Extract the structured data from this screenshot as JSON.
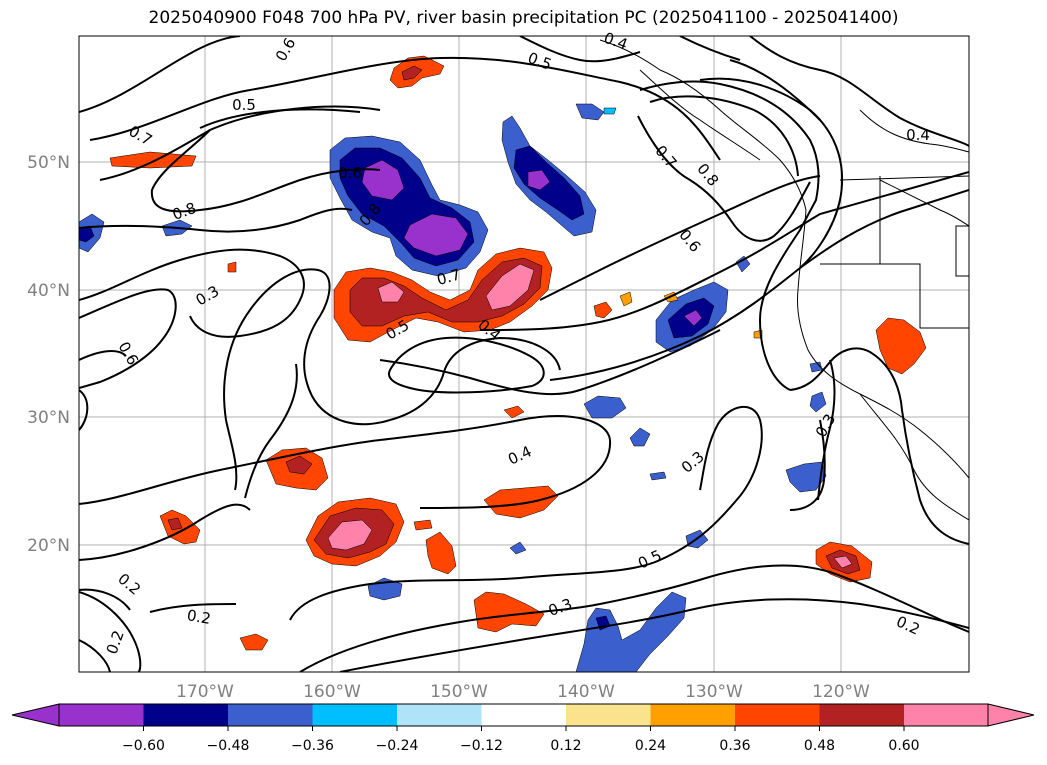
{
  "title": "2025040900 F048 700 hPa PV, river basin precipitation PC (2025041100 - 2025041400)",
  "axes": {
    "lat_labels": [
      "50°N",
      "40°N",
      "30°N",
      "20°N"
    ],
    "lon_labels": [
      "170°W",
      "160°W",
      "150°W",
      "140°W",
      "130°W",
      "120°W"
    ],
    "label_color": "#808080"
  },
  "contour_labels": [
    "0.7",
    "0.6",
    "0.5",
    "0.5",
    "0.4",
    "0.8",
    "0.7",
    "0.8",
    "0.6",
    "0.4",
    "0.6",
    "0.8",
    "0.3",
    "0.7",
    "0.5",
    "0.4",
    "0.6",
    "0.4",
    "0.3",
    "0.3",
    "0.2",
    "0.2",
    "0.2",
    "0.3",
    "0.5",
    "0.2"
  ],
  "colorbar": {
    "ticks": [
      "−0.60",
      "−0.48",
      "−0.36",
      "−0.24",
      "−0.12",
      "0.12",
      "0.24",
      "0.36",
      "0.48",
      "0.60"
    ],
    "colors": [
      "#9932cc",
      "#00008b",
      "#3b5fcd",
      "#00bfff",
      "#aee3f8",
      "#ffffff",
      "#fbe38e",
      "#ffa000",
      "#ff4500",
      "#b22222",
      "#ff82ab"
    ]
  }
}
